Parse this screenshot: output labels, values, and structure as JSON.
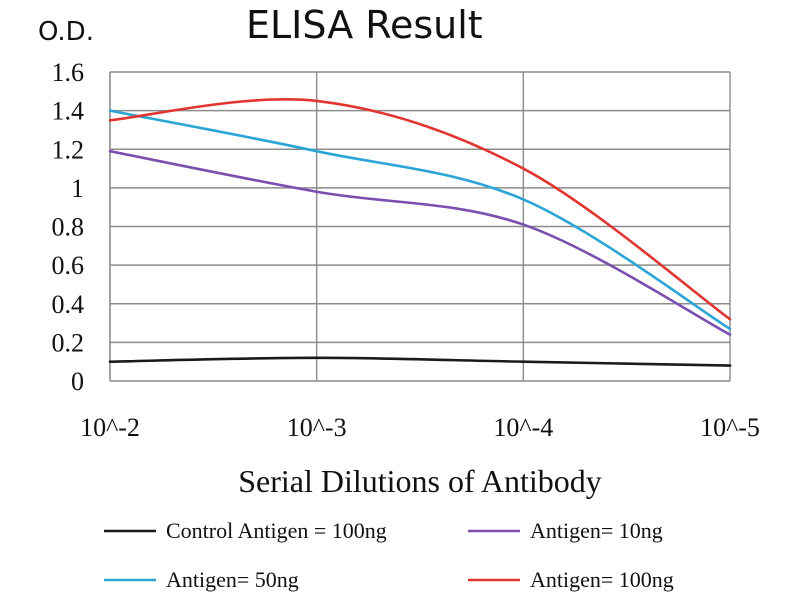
{
  "chart_data": {
    "type": "line",
    "title": "ELISA Result",
    "ylabel": "O.D.",
    "xlabel": "Serial Dilutions of Antibody",
    "categories": [
      "10^-2",
      "10^-3",
      "10^-4",
      "10^-5"
    ],
    "ylim": [
      0,
      1.6
    ],
    "yticks": [
      "0",
      "0.2",
      "0.4",
      "0.6",
      "0.8",
      "1",
      "1.2",
      "1.4",
      "1.6"
    ],
    "grid": true,
    "legend_position": "bottom",
    "series": [
      {
        "name": "Control Antigen = 100ng",
        "color": "#1a1a1a",
        "values": [
          0.1,
          0.12,
          0.1,
          0.08
        ]
      },
      {
        "name": "Antigen= 10ng",
        "color": "#7a4fb0",
        "values": [
          1.19,
          0.98,
          0.81,
          0.24
        ]
      },
      {
        "name": "Antigen= 50ng",
        "color": "#2aa5d6",
        "values": [
          1.4,
          1.19,
          0.94,
          0.27
        ]
      },
      {
        "name": "Antigen= 100ng",
        "color": "#e03530",
        "values": [
          1.35,
          1.45,
          1.1,
          0.32
        ]
      }
    ]
  }
}
